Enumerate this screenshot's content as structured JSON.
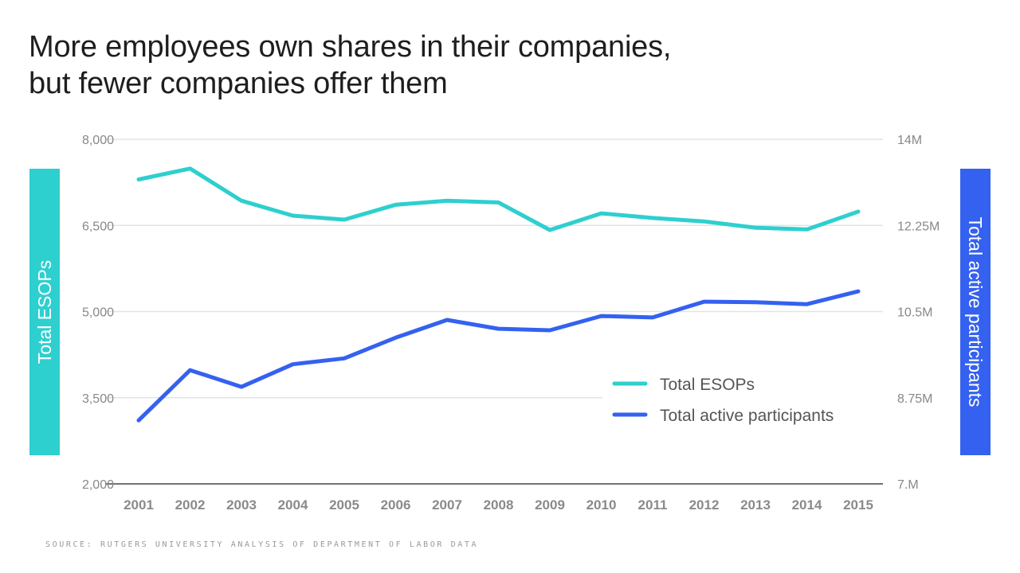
{
  "title_lines": [
    "More employees own shares in their companies,",
    "but fewer companies offer them"
  ],
  "source": "SOURCE: RUTGERS UNIVERSITY ANALYSIS OF DEPARTMENT OF LABOR DATA",
  "colors": {
    "esops": "#2ecfcf",
    "participants": "#3461f0",
    "grid": "#e1e4e8",
    "baseline": "#444444"
  },
  "chart_data": {
    "type": "line",
    "title": "More employees own shares in their companies, but fewer companies offer them",
    "x": [
      2001,
      2002,
      2003,
      2004,
      2005,
      2006,
      2007,
      2008,
      2009,
      2010,
      2011,
      2012,
      2013,
      2014,
      2015
    ],
    "x_tick_labels": [
      "2001",
      "2002",
      "2003",
      "2004",
      "2005",
      "2006",
      "2007",
      "2008",
      "2009",
      "2010",
      "2011",
      "2012",
      "2013",
      "2014",
      "2015"
    ],
    "series": [
      {
        "name": "Total ESOPs",
        "axis": "left",
        "color": "#2ecfcf",
        "values": [
          7300,
          7490,
          6930,
          6670,
          6600,
          6860,
          6930,
          6900,
          6420,
          6710,
          6630,
          6570,
          6460,
          6430,
          6740
        ]
      },
      {
        "name": "Total active participants",
        "axis": "right",
        "color": "#3461f0",
        "values": [
          8.29,
          9.31,
          8.97,
          9.43,
          9.55,
          9.97,
          10.33,
          10.15,
          10.12,
          10.41,
          10.38,
          10.7,
          10.69,
          10.65,
          10.91
        ],
        "unit": "millions"
      }
    ],
    "y_left": {
      "label": "Total ESOPs",
      "range": [
        2000,
        8000
      ],
      "ticks": [
        2000,
        3500,
        5000,
        6500,
        8000
      ],
      "tick_labels": [
        "2,000",
        "3,500",
        "5,000",
        "6,500",
        "8,000"
      ]
    },
    "y_right": {
      "label": "Total active participants",
      "range": [
        7,
        14
      ],
      "ticks": [
        7,
        8.75,
        10.5,
        12.25,
        14
      ],
      "tick_labels": [
        "7.M",
        "8.75M",
        "10.5M",
        "12.25M",
        "14M"
      ]
    },
    "legend": {
      "placement": "lower-right",
      "entries": [
        "Total ESOPs",
        "Total active participants"
      ]
    },
    "grid": true
  }
}
